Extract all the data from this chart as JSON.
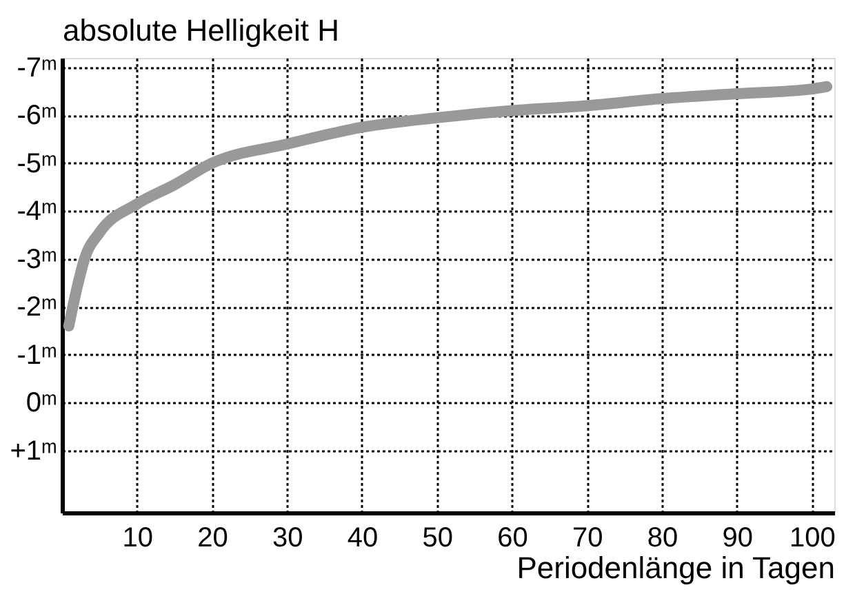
{
  "chart_data": {
    "type": "line",
    "xlabel": "Periodenlänge in Tagen",
    "ylabel": "absolute Helligkeit H",
    "x": [
      0.9,
      2,
      3,
      5,
      10,
      15,
      20,
      30,
      40,
      50,
      60,
      70,
      80,
      90,
      100,
      102
    ],
    "series": [
      {
        "color": "#999999",
        "values": [
          -1.6,
          -2.4,
          -3.0,
          -3.55,
          -4.15,
          -4.55,
          -5.0,
          -5.4,
          -5.75,
          -5.95,
          -6.1,
          -6.2,
          -6.35,
          -6.45,
          -6.55,
          -6.6
        ]
      }
    ],
    "xlim": [
      0,
      103
    ],
    "xticks": [
      10,
      20,
      30,
      40,
      50,
      60,
      70,
      80,
      90,
      100
    ],
    "ylim": [
      2.3,
      -7.2
    ],
    "yticks": [
      {
        "value": -7,
        "label": "-7ᵐ"
      },
      {
        "value": -6,
        "label": "-6ᵐ"
      },
      {
        "value": -5,
        "label": "-5ᵐ"
      },
      {
        "value": -4,
        "label": "-4ᵐ"
      },
      {
        "value": -3,
        "label": "-3ᵐ"
      },
      {
        "value": -2,
        "label": "-2ᵐ"
      },
      {
        "value": -1,
        "label": "-1ᵐ"
      },
      {
        "value": 0,
        "label": "0ᵐ"
      },
      {
        "value": 1,
        "label": "+1ᵐ"
      }
    ],
    "grid": true,
    "line_style": "solid"
  }
}
